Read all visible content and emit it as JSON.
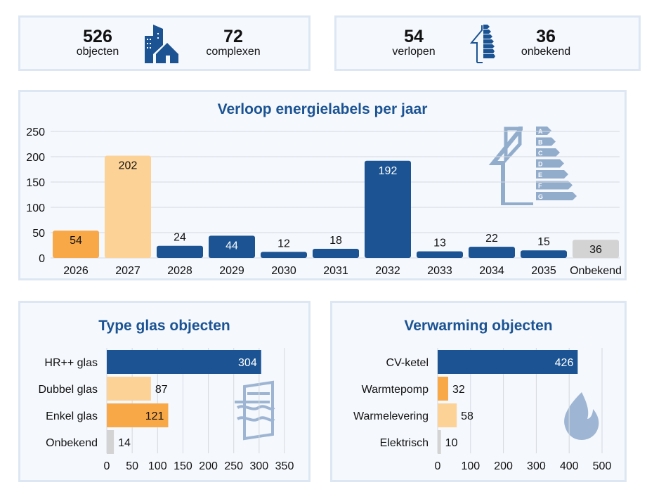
{
  "kpis": {
    "objects": {
      "value": "526",
      "label": "objecten"
    },
    "complexes": {
      "value": "72",
      "label": "complexen"
    },
    "expired": {
      "value": "54",
      "label": "verlopen"
    },
    "unknown": {
      "value": "36",
      "label": "onbekend"
    }
  },
  "icons": [
    "buildings-icon",
    "energy-label-house-icon",
    "window-icon",
    "flame-icon"
  ],
  "colors": {
    "blue": "#1b5393",
    "orange": "#f9a848",
    "light_orange": "#fdd296",
    "grey": "#d3d3d3",
    "panel": "#f5f8fd"
  },
  "chart_data": [
    {
      "type": "bar",
      "title": "Verloop energielabels per jaar",
      "categories": [
        "2026",
        "2027",
        "2028",
        "2029",
        "2030",
        "2031",
        "2032",
        "2033",
        "2034",
        "2035",
        "Onbekend"
      ],
      "values": [
        54,
        202,
        24,
        44,
        12,
        18,
        192,
        13,
        22,
        15,
        36
      ],
      "bar_colors": [
        "#f9a848",
        "#fdd296",
        "#1b5393",
        "#1b5393",
        "#1b5393",
        "#1b5393",
        "#1b5393",
        "#1b5393",
        "#1b5393",
        "#1b5393",
        "#d3d3d3"
      ],
      "yticks": [
        0,
        50,
        100,
        150,
        200,
        250
      ],
      "ylim": [
        0,
        250
      ],
      "grid": true
    },
    {
      "type": "bar",
      "orientation": "horizontal",
      "title": "Type glas objecten",
      "categories": [
        "HR++ glas",
        "Dubbel glas",
        "Enkel glas",
        "Onbekend"
      ],
      "values": [
        304,
        87,
        121,
        14
      ],
      "bar_colors": [
        "#1b5393",
        "#fdd296",
        "#f9a848",
        "#d3d3d3"
      ],
      "xticks": [
        0,
        50,
        100,
        150,
        200,
        250,
        300,
        350
      ],
      "xlim": [
        0,
        350
      ],
      "grid": true
    },
    {
      "type": "bar",
      "orientation": "horizontal",
      "title": "Verwarming objecten",
      "categories": [
        "CV-ketel",
        "Warmtepomp",
        "Warmelevering",
        "Elektrisch"
      ],
      "values": [
        426,
        32,
        58,
        10
      ],
      "bar_colors": [
        "#1b5393",
        "#f9a848",
        "#fdd296",
        "#d3d3d3"
      ],
      "xticks": [
        0,
        100,
        200,
        300,
        400,
        500
      ],
      "xlim": [
        0,
        500
      ],
      "grid": true
    }
  ]
}
